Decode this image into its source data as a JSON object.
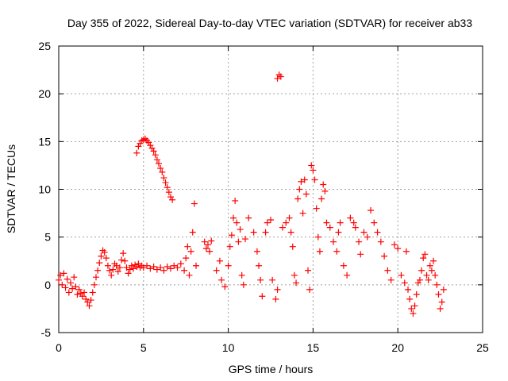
{
  "chart_data": {
    "type": "scatter",
    "title": "Day 355 of 2022, Sidereal Day-to-day VTEC variation (SDTVAR) for receiver ab33",
    "xlabel": "GPS time / hours",
    "ylabel": "SDTVAR / TECUs",
    "xlim": [
      0,
      25
    ],
    "ylim": [
      -5,
      25
    ],
    "xticks": [
      0,
      5,
      10,
      15,
      20,
      25
    ],
    "yticks": [
      -5,
      0,
      5,
      10,
      15,
      20,
      25
    ],
    "grid": true,
    "marker": "+",
    "color": "#ff0000",
    "series": [
      {
        "name": "SDTVAR",
        "points": [
          [
            0.0,
            0.5
          ],
          [
            0.1,
            1.0
          ],
          [
            0.2,
            0.0
          ],
          [
            0.3,
            1.2
          ],
          [
            0.4,
            -0.3
          ],
          [
            0.5,
            0.6
          ],
          [
            0.6,
            -0.8
          ],
          [
            0.7,
            0.2
          ],
          [
            0.8,
            -0.4
          ],
          [
            0.9,
            0.8
          ],
          [
            1.0,
            -0.2
          ],
          [
            1.1,
            -1.0
          ],
          [
            1.2,
            -0.5
          ],
          [
            1.3,
            -0.9
          ],
          [
            1.4,
            -1.2
          ],
          [
            1.5,
            -0.8
          ],
          [
            1.6,
            -1.5
          ],
          [
            1.7,
            -1.8
          ],
          [
            1.8,
            -2.2
          ],
          [
            1.9,
            -1.6
          ],
          [
            2.0,
            -0.8
          ],
          [
            2.1,
            0.0
          ],
          [
            2.2,
            0.8
          ],
          [
            2.3,
            1.5
          ],
          [
            2.4,
            2.3
          ],
          [
            2.5,
            3.0
          ],
          [
            2.6,
            3.6
          ],
          [
            2.7,
            3.4
          ],
          [
            2.8,
            2.8
          ],
          [
            2.9,
            2.0
          ],
          [
            3.0,
            1.5
          ],
          [
            3.1,
            1.0
          ],
          [
            3.2,
            1.6
          ],
          [
            3.3,
            2.2
          ],
          [
            3.4,
            2.0
          ],
          [
            3.5,
            1.4
          ],
          [
            3.6,
            1.8
          ],
          [
            3.7,
            2.6
          ],
          [
            3.8,
            3.3
          ],
          [
            3.9,
            2.5
          ],
          [
            4.0,
            1.8
          ],
          [
            4.1,
            1.2
          ],
          [
            4.2,
            1.6
          ],
          [
            4.3,
            2.0
          ],
          [
            4.4,
            1.7
          ],
          [
            4.5,
            2.1
          ],
          [
            4.6,
            1.9
          ],
          [
            4.7,
            2.2
          ],
          [
            4.8,
            1.8
          ],
          [
            4.9,
            2.0
          ],
          [
            5.0,
            1.8
          ],
          [
            5.2,
            2.0
          ],
          [
            5.4,
            1.7
          ],
          [
            5.6,
            1.9
          ],
          [
            5.8,
            1.6
          ],
          [
            6.0,
            1.8
          ],
          [
            6.2,
            1.5
          ],
          [
            6.4,
            1.9
          ],
          [
            6.6,
            1.7
          ],
          [
            6.8,
            2.0
          ],
          [
            7.0,
            1.8
          ],
          [
            7.2,
            2.2
          ],
          [
            7.4,
            1.5
          ],
          [
            7.5,
            2.8
          ],
          [
            7.6,
            4.0
          ],
          [
            7.7,
            1.0
          ],
          [
            7.8,
            3.5
          ],
          [
            7.9,
            5.5
          ],
          [
            8.0,
            8.5
          ],
          [
            8.1,
            2.0
          ],
          [
            4.6,
            13.8
          ],
          [
            4.7,
            14.5
          ],
          [
            4.8,
            14.8
          ],
          [
            4.9,
            15.1
          ],
          [
            5.0,
            15.2
          ],
          [
            5.1,
            15.3
          ],
          [
            5.2,
            15.1
          ],
          [
            5.3,
            14.9
          ],
          [
            5.4,
            14.6
          ],
          [
            5.5,
            14.3
          ],
          [
            5.6,
            14.0
          ],
          [
            5.7,
            13.6
          ],
          [
            5.8,
            13.1
          ],
          [
            5.9,
            12.7
          ],
          [
            6.0,
            12.2
          ],
          [
            6.1,
            11.8
          ],
          [
            6.2,
            11.2
          ],
          [
            6.3,
            10.7
          ],
          [
            6.4,
            10.2
          ],
          [
            6.5,
            9.7
          ],
          [
            6.6,
            9.2
          ],
          [
            6.7,
            8.9
          ],
          [
            8.6,
            4.5
          ],
          [
            8.7,
            3.8
          ],
          [
            8.8,
            4.2
          ],
          [
            8.9,
            3.5
          ],
          [
            9.0,
            4.6
          ],
          [
            9.3,
            1.5
          ],
          [
            9.5,
            2.5
          ],
          [
            9.6,
            0.5
          ],
          [
            9.8,
            -0.2
          ],
          [
            10.0,
            2.0
          ],
          [
            10.1,
            4.0
          ],
          [
            10.2,
            5.2
          ],
          [
            10.3,
            7.0
          ],
          [
            10.4,
            8.8
          ],
          [
            10.5,
            6.5
          ],
          [
            10.6,
            4.5
          ],
          [
            10.7,
            5.8
          ],
          [
            10.8,
            1.0
          ],
          [
            10.9,
            0.0
          ],
          [
            11.0,
            4.8
          ],
          [
            11.2,
            7.0
          ],
          [
            11.5,
            5.5
          ],
          [
            11.7,
            3.5
          ],
          [
            11.8,
            2.0
          ],
          [
            11.9,
            0.5
          ],
          [
            12.0,
            -1.2
          ],
          [
            12.2,
            5.5
          ],
          [
            12.3,
            6.5
          ],
          [
            12.5,
            6.8
          ],
          [
            12.6,
            0.5
          ],
          [
            12.8,
            -1.5
          ],
          [
            12.9,
            -0.5
          ],
          [
            12.9,
            21.6
          ],
          [
            13.0,
            22.0
          ],
          [
            13.1,
            21.8
          ],
          [
            13.2,
            6.0
          ],
          [
            13.4,
            6.5
          ],
          [
            13.6,
            7.0
          ],
          [
            13.7,
            5.5
          ],
          [
            13.8,
            4.0
          ],
          [
            13.9,
            1.0
          ],
          [
            14.0,
            0.2
          ],
          [
            14.1,
            9.0
          ],
          [
            14.2,
            10.0
          ],
          [
            14.3,
            10.8
          ],
          [
            14.4,
            7.5
          ],
          [
            14.5,
            11.0
          ],
          [
            14.6,
            9.5
          ],
          [
            14.7,
            1.5
          ],
          [
            14.8,
            -0.5
          ],
          [
            14.9,
            12.5
          ],
          [
            15.0,
            12.0
          ],
          [
            15.1,
            11.0
          ],
          [
            15.2,
            8.0
          ],
          [
            15.3,
            5.0
          ],
          [
            15.4,
            3.5
          ],
          [
            15.5,
            9.0
          ],
          [
            15.6,
            10.5
          ],
          [
            15.7,
            9.8
          ],
          [
            15.8,
            6.5
          ],
          [
            16.0,
            6.0
          ],
          [
            16.2,
            4.5
          ],
          [
            16.4,
            3.5
          ],
          [
            16.5,
            5.5
          ],
          [
            16.6,
            6.5
          ],
          [
            16.8,
            2.0
          ],
          [
            17.0,
            1.0
          ],
          [
            17.2,
            7.0
          ],
          [
            17.4,
            6.5
          ],
          [
            17.5,
            6.0
          ],
          [
            17.7,
            4.5
          ],
          [
            17.8,
            3.2
          ],
          [
            18.0,
            5.5
          ],
          [
            18.2,
            5.0
          ],
          [
            18.4,
            7.8
          ],
          [
            18.6,
            6.5
          ],
          [
            18.8,
            5.5
          ],
          [
            19.0,
            4.5
          ],
          [
            19.2,
            3.0
          ],
          [
            19.4,
            1.5
          ],
          [
            19.6,
            0.5
          ],
          [
            19.8,
            4.2
          ],
          [
            20.0,
            3.8
          ],
          [
            20.2,
            1.0
          ],
          [
            20.4,
            0.2
          ],
          [
            20.5,
            3.5
          ],
          [
            20.6,
            -0.5
          ],
          [
            20.7,
            -1.5
          ],
          [
            20.8,
            -2.5
          ],
          [
            20.9,
            -3.0
          ],
          [
            21.0,
            -2.2
          ],
          [
            21.1,
            -1.0
          ],
          [
            21.2,
            0.2
          ],
          [
            21.3,
            0.5
          ],
          [
            21.4,
            1.5
          ],
          [
            21.5,
            2.8
          ],
          [
            21.6,
            3.2
          ],
          [
            21.7,
            1.0
          ],
          [
            21.8,
            0.5
          ],
          [
            21.9,
            2.0
          ],
          [
            22.0,
            1.5
          ],
          [
            22.1,
            2.5
          ],
          [
            22.2,
            1.0
          ],
          [
            22.3,
            0.0
          ],
          [
            22.4,
            -1.0
          ],
          [
            22.5,
            -2.5
          ],
          [
            22.6,
            -1.8
          ],
          [
            22.7,
            -0.5
          ]
        ]
      }
    ]
  }
}
